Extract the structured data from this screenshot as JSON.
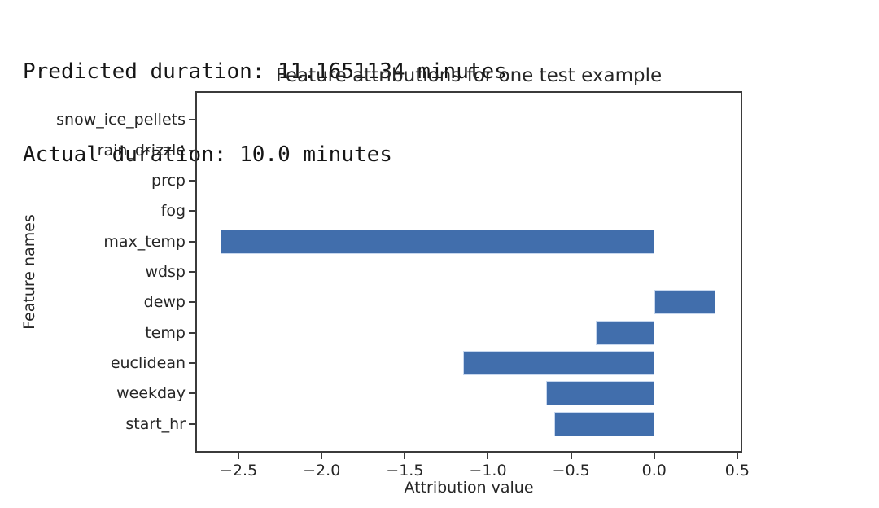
{
  "header": {
    "line1": "Predicted duration: 11.1651134 minutes",
    "line2": "Actual duration: 10.0 minutes"
  },
  "chart_data": {
    "type": "bar",
    "orientation": "horizontal",
    "title": "Feature attributions for one test example",
    "xlabel": "Attribution value",
    "ylabel": "Feature names",
    "categories_top_to_bottom": [
      "snow_ice_pellets",
      "rain_drizzle",
      "prcp",
      "fog",
      "max_temp",
      "wdsp",
      "dewp",
      "temp",
      "euclidean",
      "weekday",
      "start_hr"
    ],
    "values": [
      0,
      0,
      0,
      0,
      -2.61,
      0,
      0.37,
      -0.35,
      -1.15,
      -0.65,
      -0.6
    ],
    "xticks": [
      -2.5,
      -2.0,
      -1.5,
      -1.0,
      -0.5,
      0.0,
      0.5
    ],
    "xlim": [
      -2.76,
      0.53
    ],
    "bar_color": "#416eac",
    "bar_edge_color": "#c7d7ee",
    "grid": false,
    "legend": "none"
  }
}
